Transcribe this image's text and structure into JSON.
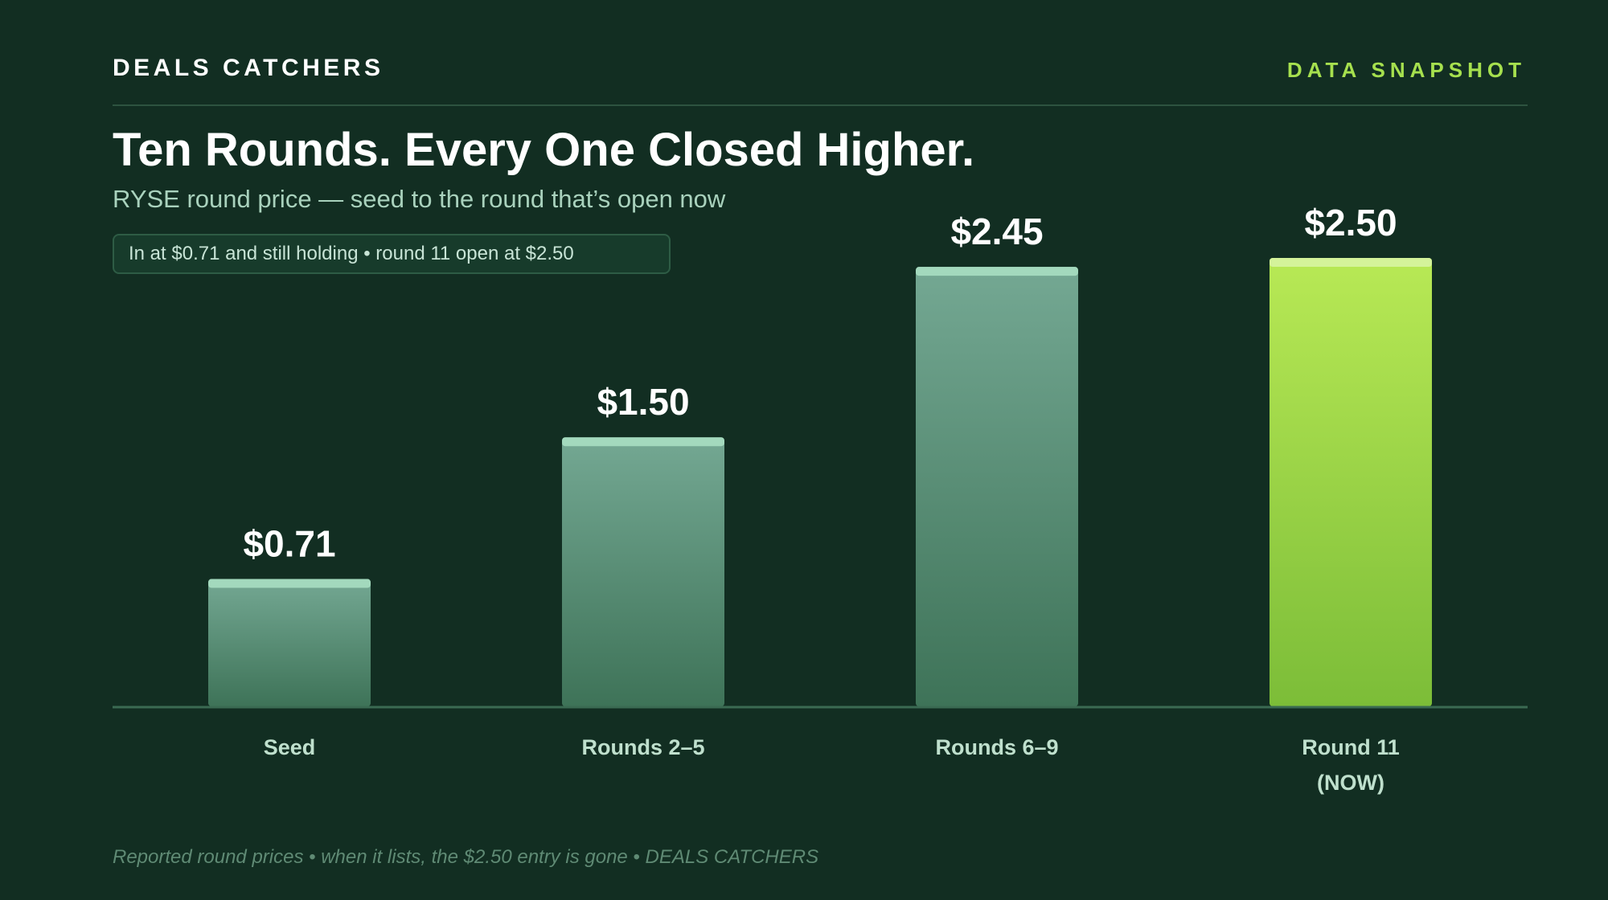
{
  "header": {
    "brand": "DEALS CATCHERS",
    "tag": "DATA SNAPSHOT"
  },
  "headline": {
    "title": "Ten Rounds. Every One Closed Higher.",
    "subtitle": "RYSE round price — seed to the round that’s open now",
    "note": "In at $0.71 and still holding • round 11 open at $2.50"
  },
  "footer": {
    "text": "Reported round prices • when it lists, the $2.50 entry is gone • DEALS CATCHERS"
  },
  "colors": {
    "background": "#122e22",
    "bar_top": "#74a893",
    "bar_bottom": "#3e7358",
    "bar_cap": "#a3d9bd",
    "highlight_top": "#b8e955",
    "highlight_bottom": "#7cbd38",
    "highlight_cap": "#d4f39a",
    "baseline": "#3a6a52",
    "value_label": "#ffffff",
    "category_label": "#bfe0cd"
  },
  "chart_data": {
    "type": "bar",
    "categories": [
      "Seed",
      "Rounds 2–5",
      "Rounds 6–9",
      "Round 11\n(NOW)"
    ],
    "values": [
      0.71,
      1.5,
      2.45,
      2.5
    ],
    "value_labels": [
      "$0.71",
      "$1.50",
      "$2.45",
      "$2.50"
    ],
    "highlight_index": 3,
    "ylim": [
      0,
      2.5
    ],
    "grid": false,
    "legend": "none"
  }
}
